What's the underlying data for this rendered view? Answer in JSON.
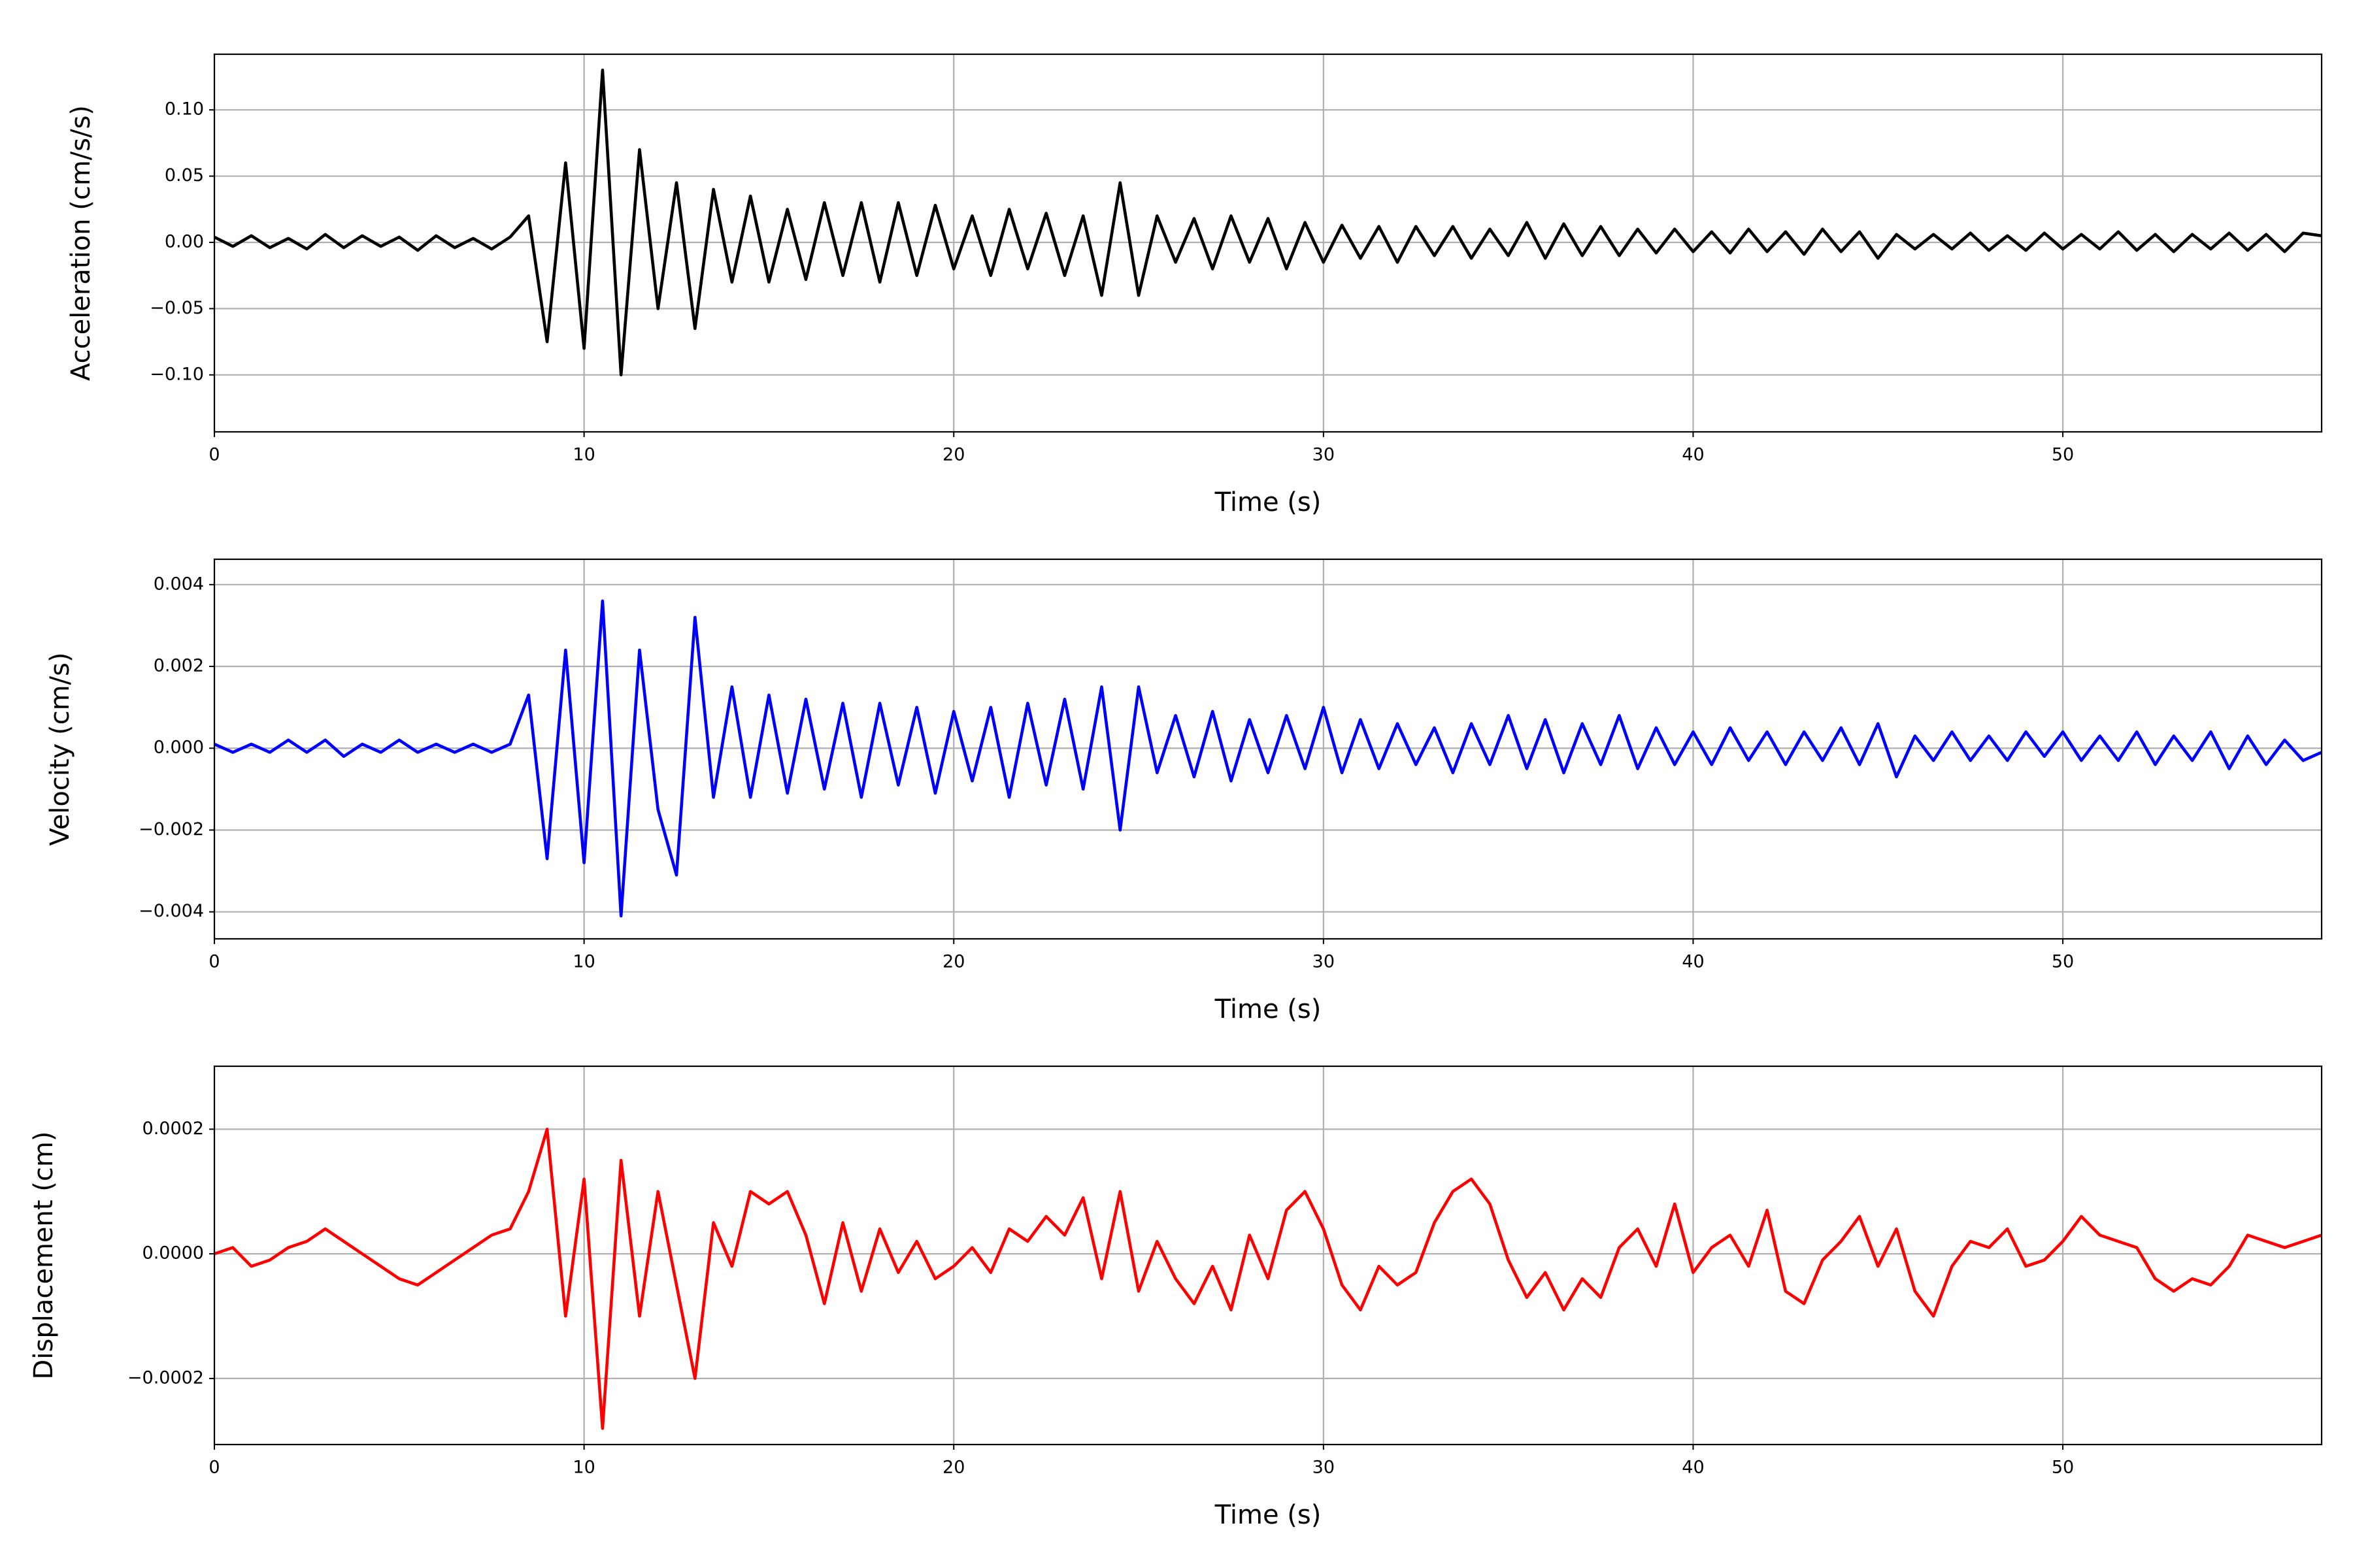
{
  "chart_data": [
    {
      "type": "line",
      "xlabel": "Time (s)",
      "ylabel": "Acceleration (cm/s/s)",
      "color": "#000000",
      "grid": true,
      "xlim": [
        0,
        57
      ],
      "xticks": [
        0,
        10,
        20,
        30,
        40,
        50
      ],
      "ylim": [
        -0.143,
        0.142
      ],
      "yticks": [
        {
          "value": -0.1,
          "label": "−0.10"
        },
        {
          "value": -0.05,
          "label": "−0.05"
        },
        {
          "value": 0,
          "label": "0.00"
        },
        {
          "value": 0.05,
          "label": "0.05"
        },
        {
          "value": 0.1,
          "label": "0.10"
        }
      ],
      "x": [
        0,
        0.5,
        1,
        1.5,
        2,
        2.5,
        3,
        3.5,
        4,
        4.5,
        5,
        5.5,
        6,
        6.5,
        7,
        7.5,
        8,
        8.5,
        9,
        9.5,
        10,
        10.5,
        11,
        11.5,
        12,
        12.5,
        13,
        13.5,
        14,
        14.5,
        15,
        15.5,
        16,
        16.5,
        17,
        17.5,
        18,
        18.5,
        19,
        19.5,
        20,
        20.5,
        21,
        21.5,
        22,
        22.5,
        23,
        23.5,
        24,
        24.5,
        25,
        25.5,
        26,
        26.5,
        27,
        27.5,
        28,
        28.5,
        29,
        29.5,
        30,
        30.5,
        31,
        31.5,
        32,
        32.5,
        33,
        33.5,
        34,
        34.5,
        35,
        35.5,
        36,
        36.5,
        37,
        37.5,
        38,
        38.5,
        39,
        39.5,
        40,
        40.5,
        41,
        41.5,
        42,
        42.5,
        43,
        43.5,
        44,
        44.5,
        45,
        45.5,
        46,
        46.5,
        47,
        47.5,
        48,
        48.5,
        49,
        49.5,
        50,
        50.5,
        51,
        51.5,
        52,
        52.5,
        53,
        53.5,
        54,
        54.5,
        55,
        55.5,
        56,
        56.5,
        57
      ],
      "values": [
        0.004,
        -0.003,
        0.005,
        -0.004,
        0.003,
        -0.005,
        0.006,
        -0.004,
        0.005,
        -0.003,
        0.004,
        -0.006,
        0.005,
        -0.004,
        0.003,
        -0.005,
        0.004,
        0.02,
        -0.075,
        0.06,
        -0.08,
        0.13,
        -0.1,
        0.07,
        -0.05,
        0.045,
        -0.065,
        0.04,
        -0.03,
        0.035,
        -0.03,
        0.025,
        -0.028,
        0.03,
        -0.025,
        0.03,
        -0.03,
        0.03,
        -0.025,
        0.028,
        -0.02,
        0.02,
        -0.025,
        0.025,
        -0.02,
        0.022,
        -0.025,
        0.02,
        -0.04,
        0.045,
        -0.04,
        0.02,
        -0.015,
        0.018,
        -0.02,
        0.02,
        -0.015,
        0.018,
        -0.02,
        0.015,
        -0.015,
        0.013,
        -0.012,
        0.012,
        -0.015,
        0.012,
        -0.01,
        0.012,
        -0.012,
        0.01,
        -0.01,
        0.015,
        -0.012,
        0.014,
        -0.01,
        0.012,
        -0.01,
        0.01,
        -0.008,
        0.01,
        -0.007,
        0.008,
        -0.008,
        0.01,
        -0.007,
        0.008,
        -0.009,
        0.01,
        -0.007,
        0.008,
        -0.012,
        0.006,
        -0.005,
        0.006,
        -0.005,
        0.007,
        -0.006,
        0.005,
        -0.006,
        0.007,
        -0.005,
        0.006,
        -0.005,
        0.008,
        -0.006,
        0.006,
        -0.007,
        0.006,
        -0.005,
        0.007,
        -0.006,
        0.006,
        -0.007,
        0.007,
        0.005
      ]
    },
    {
      "type": "line",
      "xlabel": "Time (s)",
      "ylabel": "Velocity (cm/s)",
      "color": "#0000ff",
      "grid": true,
      "xlim": [
        0,
        57
      ],
      "xticks": [
        0,
        10,
        20,
        30,
        40,
        50
      ],
      "ylim": [
        -0.00466,
        0.00462
      ],
      "yticks": [
        {
          "value": -0.004,
          "label": "−0.004"
        },
        {
          "value": -0.002,
          "label": "−0.002"
        },
        {
          "value": 0,
          "label": "0.000"
        },
        {
          "value": 0.002,
          "label": "0.002"
        },
        {
          "value": 0.004,
          "label": "0.004"
        }
      ],
      "x": [
        0,
        0.5,
        1,
        1.5,
        2,
        2.5,
        3,
        3.5,
        4,
        4.5,
        5,
        5.5,
        6,
        6.5,
        7,
        7.5,
        8,
        8.5,
        9,
        9.5,
        10,
        10.5,
        11,
        11.5,
        12,
        12.5,
        13,
        13.5,
        14,
        14.5,
        15,
        15.5,
        16,
        16.5,
        17,
        17.5,
        18,
        18.5,
        19,
        19.5,
        20,
        20.5,
        21,
        21.5,
        22,
        22.5,
        23,
        23.5,
        24,
        24.5,
        25,
        25.5,
        26,
        26.5,
        27,
        27.5,
        28,
        28.5,
        29,
        29.5,
        30,
        30.5,
        31,
        31.5,
        32,
        32.5,
        33,
        33.5,
        34,
        34.5,
        35,
        35.5,
        36,
        36.5,
        37,
        37.5,
        38,
        38.5,
        39,
        39.5,
        40,
        40.5,
        41,
        41.5,
        42,
        42.5,
        43,
        43.5,
        44,
        44.5,
        45,
        45.5,
        46,
        46.5,
        47,
        47.5,
        48,
        48.5,
        49,
        49.5,
        50,
        50.5,
        51,
        51.5,
        52,
        52.5,
        53,
        53.5,
        54,
        54.5,
        55,
        55.5,
        56,
        56.5,
        57
      ],
      "values": [
        0.0001,
        -0.0001,
        0.0001,
        -0.0001,
        0.0002,
        -0.0001,
        0.0002,
        -0.0002,
        0.0001,
        -0.0001,
        0.0002,
        -0.0001,
        0.0001,
        -0.0001,
        0.0001,
        -0.0001,
        0.0001,
        0.0013,
        -0.0027,
        0.0024,
        -0.0028,
        0.0036,
        -0.0041,
        0.0024,
        -0.0015,
        -0.0031,
        0.0032,
        -0.0012,
        0.0015,
        -0.0012,
        0.0013,
        -0.0011,
        0.0012,
        -0.001,
        0.0011,
        -0.0012,
        0.0011,
        -0.0009,
        0.001,
        -0.0011,
        0.0009,
        -0.0008,
        0.001,
        -0.0012,
        0.0011,
        -0.0009,
        0.0012,
        -0.001,
        0.0015,
        -0.002,
        0.0015,
        -0.0006,
        0.0008,
        -0.0007,
        0.0009,
        -0.0008,
        0.0007,
        -0.0006,
        0.0008,
        -0.0005,
        0.001,
        -0.0006,
        0.0007,
        -0.0005,
        0.0006,
        -0.0004,
        0.0005,
        -0.0006,
        0.0006,
        -0.0004,
        0.0008,
        -0.0005,
        0.0007,
        -0.0006,
        0.0006,
        -0.0004,
        0.0008,
        -0.0005,
        0.0005,
        -0.0004,
        0.0004,
        -0.0004,
        0.0005,
        -0.0003,
        0.0004,
        -0.0004,
        0.0004,
        -0.0003,
        0.0005,
        -0.0004,
        0.0006,
        -0.0007,
        0.0003,
        -0.0003,
        0.0004,
        -0.0003,
        0.0003,
        -0.0003,
        0.0004,
        -0.0002,
        0.0004,
        -0.0003,
        0.0003,
        -0.0003,
        0.0004,
        -0.0004,
        0.0003,
        -0.0003,
        0.0004,
        -0.0005,
        0.0003,
        -0.0004,
        0.0002,
        -0.0003,
        -0.0001
      ]
    },
    {
      "type": "line",
      "xlabel": "Time (s)",
      "ylabel": "Displacement (cm)",
      "color": "#ff0000",
      "grid": true,
      "xlim": [
        0,
        57
      ],
      "xticks": [
        0,
        10,
        20,
        30,
        40,
        50
      ],
      "ylim": [
        -0.000306,
        0.000301
      ],
      "yticks": [
        {
          "value": -0.0002,
          "label": "−0.0002"
        },
        {
          "value": 0,
          "label": "0.0000"
        },
        {
          "value": 0.0002,
          "label": "0.0002"
        }
      ],
      "x": [
        0,
        0.5,
        1,
        1.5,
        2,
        2.5,
        3,
        3.5,
        4,
        4.5,
        5,
        5.5,
        6,
        6.5,
        7,
        7.5,
        8,
        8.5,
        9,
        9.5,
        10,
        10.5,
        11,
        11.5,
        12,
        12.5,
        13,
        13.5,
        14,
        14.5,
        15,
        15.5,
        16,
        16.5,
        17,
        17.5,
        18,
        18.5,
        19,
        19.5,
        20,
        20.5,
        21,
        21.5,
        22,
        22.5,
        23,
        23.5,
        24,
        24.5,
        25,
        25.5,
        26,
        26.5,
        27,
        27.5,
        28,
        28.5,
        29,
        29.5,
        30,
        30.5,
        31,
        31.5,
        32,
        32.5,
        33,
        33.5,
        34,
        34.5,
        35,
        35.5,
        36,
        36.5,
        37,
        37.5,
        38,
        38.5,
        39,
        39.5,
        40,
        40.5,
        41,
        41.5,
        42,
        42.5,
        43,
        43.5,
        44,
        44.5,
        45,
        45.5,
        46,
        46.5,
        47,
        47.5,
        48,
        48.5,
        49,
        49.5,
        50,
        50.5,
        51,
        51.5,
        52,
        52.5,
        53,
        53.5,
        54,
        54.5,
        55,
        55.5,
        56,
        56.5,
        57
      ],
      "values": [
        0,
        1e-05,
        -2e-05,
        -1e-05,
        1e-05,
        2e-05,
        4e-05,
        2e-05,
        0,
        -2e-05,
        -4e-05,
        -5e-05,
        -3e-05,
        -1e-05,
        1e-05,
        3e-05,
        4e-05,
        0.0001,
        0.0002,
        -0.0001,
        0.00012,
        -0.00028,
        0.00015,
        -0.0001,
        0.0001,
        -5e-05,
        -0.0002,
        5e-05,
        -2e-05,
        0.0001,
        8e-05,
        0.0001,
        3e-05,
        -8e-05,
        5e-05,
        -6e-05,
        4e-05,
        -3e-05,
        2e-05,
        -4e-05,
        -2e-05,
        1e-05,
        -3e-05,
        4e-05,
        2e-05,
        6e-05,
        3e-05,
        9e-05,
        -4e-05,
        0.0001,
        -6e-05,
        2e-05,
        -4e-05,
        -8e-05,
        -2e-05,
        -9e-05,
        3e-05,
        -4e-05,
        7e-05,
        0.0001,
        4e-05,
        -5e-05,
        -9e-05,
        -2e-05,
        -5e-05,
        -3e-05,
        5e-05,
        0.0001,
        0.00012,
        8e-05,
        -1e-05,
        -7e-05,
        -3e-05,
        -9e-05,
        -4e-05,
        -7e-05,
        1e-05,
        4e-05,
        -2e-05,
        8e-05,
        -3e-05,
        1e-05,
        3e-05,
        -2e-05,
        7e-05,
        -6e-05,
        -8e-05,
        -1e-05,
        2e-05,
        6e-05,
        -2e-05,
        4e-05,
        -6e-05,
        -0.0001,
        -2e-05,
        2e-05,
        1e-05,
        4e-05,
        -2e-05,
        -1e-05,
        2e-05,
        6e-05,
        3e-05,
        2e-05,
        1e-05,
        -4e-05,
        -6e-05,
        -4e-05,
        -5e-05,
        -2e-05,
        3e-05,
        2e-05,
        1e-05,
        2e-05,
        3e-05
      ]
    }
  ]
}
